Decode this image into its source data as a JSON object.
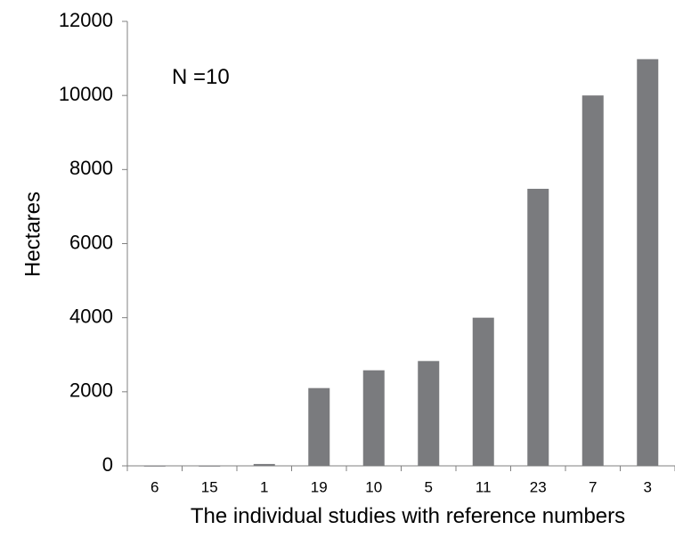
{
  "chart_data": {
    "type": "bar",
    "categories": [
      "6",
      "15",
      "1",
      "19",
      "10",
      "5",
      "11",
      "23",
      "7",
      "3"
    ],
    "values": [
      5,
      5,
      50,
      2100,
      2580,
      2830,
      4000,
      7480,
      10000,
      10980
    ],
    "xlabel": "The individual studies with reference numbers",
    "ylabel": "Hectares",
    "ylim": [
      0,
      12000
    ],
    "yticks": [
      0,
      2000,
      4000,
      6000,
      8000,
      10000,
      12000
    ],
    "annotation": "N =10",
    "grid": false,
    "bar_color": "#7a7b7e"
  }
}
